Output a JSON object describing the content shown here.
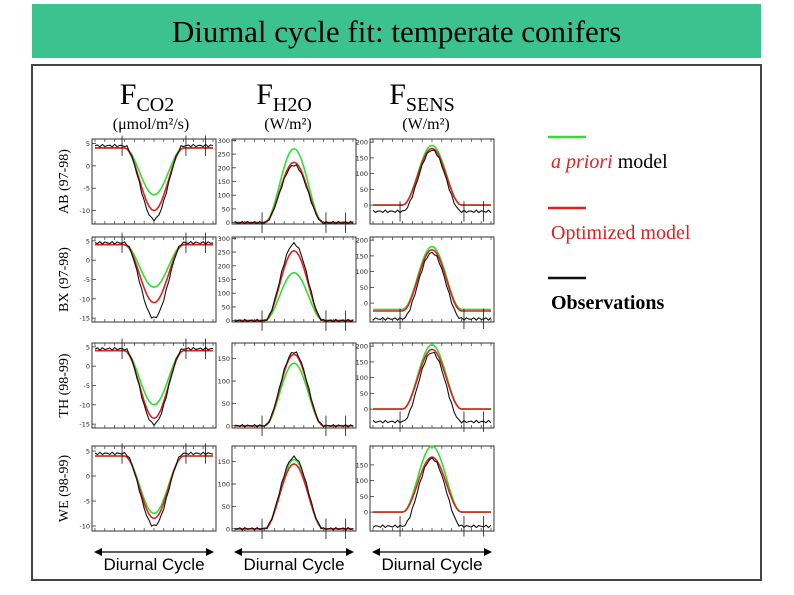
{
  "title": "Diurnal cycle fit: temperate conifers",
  "column_headers": [
    {
      "main": "F",
      "sub": "CO2",
      "unit": "(μmol/m²/s)"
    },
    {
      "main": "F",
      "sub": "H2O",
      "unit": "(W/m²)"
    },
    {
      "main": "F",
      "sub": "SENS",
      "unit": "(W/m²)"
    }
  ],
  "row_labels": [
    "AB (97-98)",
    "BX (97-98)",
    "TH (98-99)",
    "WE (98-99)"
  ],
  "x_label": "Diurnal Cycle",
  "legend": [
    {
      "label_italic": "a priori",
      "label": " model",
      "color": "#33dd33"
    },
    {
      "label_italic": "",
      "label": "Optimized model",
      "color": "#dd2222"
    },
    {
      "label_italic": "",
      "label": "Observations",
      "color": "#111111"
    }
  ],
  "colors": {
    "banner": "#3cc28e",
    "apriori": "#33dd33",
    "optimized": "#dd2222",
    "observed": "#111111"
  },
  "chart_data": [
    {
      "type": "line",
      "row": "AB (97-98)",
      "column": "FCO2",
      "ylim": [
        -13,
        6
      ],
      "yticks": [
        "5",
        "0",
        "-5",
        "-10"
      ],
      "ytick_values": [
        5,
        0,
        -5,
        -10
      ],
      "series": [
        {
          "name": "a priori model",
          "base": 4,
          "extreme": -6.5
        },
        {
          "name": "Optimized model",
          "base": 4,
          "extreme": -10
        },
        {
          "name": "Observations",
          "base": 4.5,
          "extreme": -12
        }
      ]
    },
    {
      "type": "line",
      "row": "AB (97-98)",
      "column": "FH2O",
      "ylim": [
        -5,
        305
      ],
      "yticks": [
        "300",
        "250",
        "200",
        "150",
        "100",
        "50",
        "0"
      ],
      "ytick_values": [
        300,
        250,
        200,
        150,
        100,
        50,
        0
      ],
      "series": [
        {
          "name": "a priori model",
          "base": 0,
          "extreme": 270
        },
        {
          "name": "Optimized model",
          "base": 0,
          "extreme": 220
        },
        {
          "name": "Observations",
          "base": 0,
          "extreme": 210
        }
      ]
    },
    {
      "type": "line",
      "row": "AB (97-98)",
      "column": "FSENS",
      "ylim": [
        -60,
        210
      ],
      "yticks": [
        "200",
        "150",
        "100",
        "50",
        "0"
      ],
      "ytick_values": [
        200,
        150,
        100,
        50,
        0
      ],
      "series": [
        {
          "name": "a priori model",
          "base": 0,
          "extreme": 190
        },
        {
          "name": "Optimized model",
          "base": 0,
          "extreme": 180
        },
        {
          "name": "Observations",
          "base": -20,
          "extreme": 175
        }
      ]
    },
    {
      "type": "line",
      "row": "BX (97-98)",
      "column": "FCO2",
      "ylim": [
        -16,
        6
      ],
      "yticks": [
        "5",
        "0",
        "-5",
        "-10",
        "-15"
      ],
      "ytick_values": [
        5,
        0,
        -5,
        -10,
        -15
      ],
      "series": [
        {
          "name": "a priori model",
          "base": 4,
          "extreme": -7
        },
        {
          "name": "Optimized model",
          "base": 4,
          "extreme": -11
        },
        {
          "name": "Observations",
          "base": 4.5,
          "extreme": -15
        }
      ]
    },
    {
      "type": "line",
      "row": "BX (97-98)",
      "column": "FH2O",
      "ylim": [
        -5,
        305
      ],
      "yticks": [
        "300",
        "250",
        "200",
        "150",
        "100",
        "50",
        "0"
      ],
      "ytick_values": [
        300,
        250,
        200,
        150,
        100,
        50,
        0
      ],
      "series": [
        {
          "name": "a priori model",
          "base": 0,
          "extreme": 175
        },
        {
          "name": "Optimized model",
          "base": 0,
          "extreme": 255
        },
        {
          "name": "Observations",
          "base": 0,
          "extreme": 280
        }
      ]
    },
    {
      "type": "line",
      "row": "BX (97-98)",
      "column": "FSENS",
      "ylim": [
        -60,
        210
      ],
      "yticks": [
        "200",
        "150",
        "100",
        "50",
        "0"
      ],
      "ytick_values": [
        200,
        150,
        100,
        50,
        0
      ],
      "series": [
        {
          "name": "a priori model",
          "base": -20,
          "extreme": 180
        },
        {
          "name": "Optimized model",
          "base": -25,
          "extreme": 170
        },
        {
          "name": "Observations",
          "base": -50,
          "extreme": 160
        }
      ]
    },
    {
      "type": "line",
      "row": "TH (98-99)",
      "column": "FCO2",
      "ylim": [
        -16,
        6
      ],
      "yticks": [
        "5",
        "0",
        "-5",
        "-10",
        "-15"
      ],
      "ytick_values": [
        5,
        0,
        -5,
        -10,
        -15
      ],
      "series": [
        {
          "name": "a priori model",
          "base": 4,
          "extreme": -10
        },
        {
          "name": "Optimized model",
          "base": 4,
          "extreme": -13.5
        },
        {
          "name": "Observations",
          "base": 4.5,
          "extreme": -15
        }
      ]
    },
    {
      "type": "line",
      "row": "TH (98-99)",
      "column": "FH2O",
      "ylim": [
        -5,
        185
      ],
      "yticks": [
        "150",
        "100",
        "50",
        "0"
      ],
      "ytick_values": [
        150,
        100,
        50,
        0
      ],
      "series": [
        {
          "name": "a priori model",
          "base": 0,
          "extreme": 140
        },
        {
          "name": "Optimized model",
          "base": 0,
          "extreme": 160
        },
        {
          "name": "Observations",
          "base": 0,
          "extreme": 165
        }
      ]
    },
    {
      "type": "line",
      "row": "TH (98-99)",
      "column": "FSENS",
      "ylim": [
        -60,
        210
      ],
      "yticks": [
        "200",
        "150",
        "100",
        "50",
        "0"
      ],
      "ytick_values": [
        200,
        150,
        100,
        50,
        0
      ],
      "series": [
        {
          "name": "a priori model",
          "base": 0,
          "extreme": 205
        },
        {
          "name": "Optimized model",
          "base": 0,
          "extreme": 190
        },
        {
          "name": "Observations",
          "base": -40,
          "extreme": 180
        }
      ]
    },
    {
      "type": "line",
      "row": "WE (98-99)",
      "column": "FCO2",
      "ylim": [
        -11,
        6
      ],
      "yticks": [
        "5",
        "0",
        "-5",
        "-10"
      ],
      "ytick_values": [
        5,
        0,
        -5,
        -10
      ],
      "series": [
        {
          "name": "a priori model",
          "base": 4,
          "extreme": -7.5
        },
        {
          "name": "Optimized model",
          "base": 4,
          "extreme": -8.5
        },
        {
          "name": "Observations",
          "base": 4.5,
          "extreme": -10
        }
      ]
    },
    {
      "type": "line",
      "row": "WE (98-99)",
      "column": "FH2O",
      "ylim": [
        -5,
        185
      ],
      "yticks": [
        "150",
        "100",
        "50",
        "0"
      ],
      "ytick_values": [
        150,
        100,
        50,
        0
      ],
      "series": [
        {
          "name": "a priori model",
          "base": 0,
          "extreme": 155
        },
        {
          "name": "Optimized model",
          "base": 0,
          "extreme": 145
        },
        {
          "name": "Observations",
          "base": 0,
          "extreme": 160
        }
      ]
    },
    {
      "type": "line",
      "row": "WE (98-99)",
      "column": "FSENS",
      "ylim": [
        -60,
        210
      ],
      "yticks": [
        "150",
        "100",
        "50",
        "0"
      ],
      "ytick_values": [
        150,
        100,
        50,
        0
      ],
      "series": [
        {
          "name": "a priori model",
          "base": 0,
          "extreme": 210
        },
        {
          "name": "Optimized model",
          "base": 0,
          "extreme": 175
        },
        {
          "name": "Observations",
          "base": -45,
          "extreme": 170
        }
      ]
    }
  ]
}
